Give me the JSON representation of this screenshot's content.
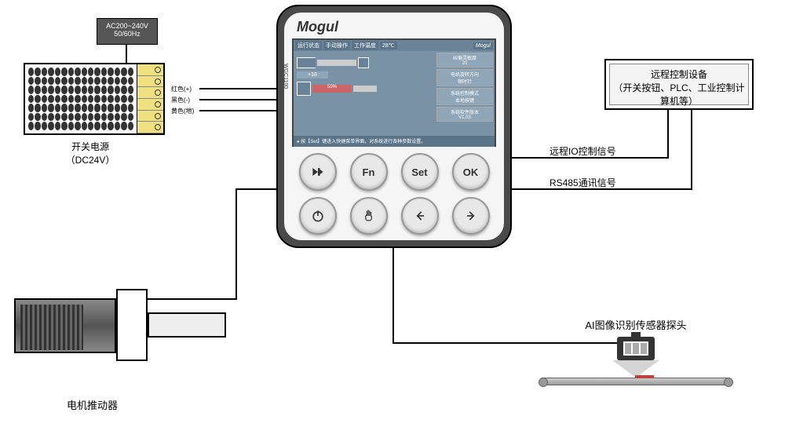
{
  "controller": {
    "brand": "Mogul",
    "model": "WGC1100",
    "screen": {
      "header": {
        "status_label": "运行状态",
        "status_value": "手动操作",
        "temp_label": "工作温度",
        "temp_value": "28℃",
        "brand": "Mogul"
      },
      "display_value": "+18",
      "progress_value": "50%",
      "info_panels": [
        {
          "label": "纠偏灵敏度",
          "value": "20"
        },
        {
          "label": "电机旋转方向",
          "value": "顺时针"
        },
        {
          "label": "系统控制模式",
          "value": "本地按键"
        },
        {
          "label": "系统软件版本",
          "value": "V1.03"
        }
      ],
      "footer_hint": "● 按【Set】键进入快捷菜单界面，对系统进行各种参数设置。"
    },
    "buttons": {
      "row1": [
        "skip",
        "Fn",
        "Set",
        "OK"
      ],
      "row2": [
        "power",
        "hand",
        "left",
        "right"
      ]
    }
  },
  "ac_box": {
    "line1": "AC200~240V",
    "line2": "50/60Hz"
  },
  "psu": {
    "label_line1": "开关电源",
    "label_line2": "（DC24V）",
    "terminals": [
      {
        "color": "红色",
        "sign": "(+)"
      },
      {
        "color": "黑色",
        "sign": "(-)"
      },
      {
        "color": "黄色",
        "sign": "(地)"
      }
    ]
  },
  "motor": {
    "label": "电机推动器"
  },
  "remote": {
    "line1": "远程控制设备",
    "line2": "（开关按钮、PLC、工业控制计算机等）"
  },
  "signals": {
    "io": "远程IO控制信号",
    "rs485": "RS485通讯信号"
  },
  "ai_sensor": {
    "label": "AI图像识别传感器探头"
  },
  "colors": {
    "controller_body": "#4a4a4a",
    "screen_bg": "#7a92a6",
    "wire": "#000000"
  }
}
